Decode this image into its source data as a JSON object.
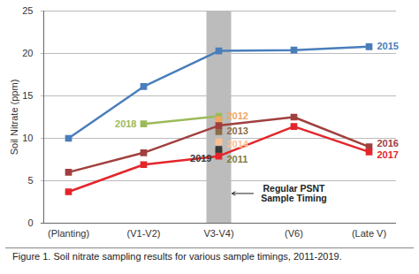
{
  "chart_data": {
    "type": "line",
    "categories": [
      "(Planting)",
      "(V1-V2)",
      "V3-V4)",
      "(V6)",
      "(Late V)"
    ],
    "series": [
      {
        "name": "2015",
        "color": "#4a7ebb",
        "values": [
          10.0,
          16.1,
          20.3,
          20.4,
          20.8
        ]
      },
      {
        "name": "2018",
        "color": "#9bbb59",
        "values": [
          null,
          11.7,
          12.6,
          null,
          null
        ]
      },
      {
        "name": "2012",
        "color": "#f0a860",
        "values": [
          null,
          null,
          12.2,
          null,
          null
        ]
      },
      {
        "name": "2013",
        "color": "#8c6d46",
        "values": [
          null,
          null,
          10.8,
          null,
          null
        ]
      },
      {
        "name": "2014",
        "color": "#fac090",
        "values": [
          null,
          null,
          9.6,
          null,
          null
        ]
      },
      {
        "name": "2011",
        "color": "#7f7a3a",
        "values": [
          null,
          null,
          8.4,
          null,
          null
        ]
      },
      {
        "name": "2016",
        "color": "#a0403e",
        "values": [
          6.0,
          8.3,
          11.5,
          12.5,
          9.0
        ]
      },
      {
        "name": "2017",
        "color": "#e3262b",
        "values": [
          3.7,
          6.9,
          7.9,
          11.4,
          8.4
        ]
      },
      {
        "name": "2019",
        "color": "#3a3a3a",
        "values": [
          null,
          null,
          8.7,
          null,
          null
        ]
      }
    ],
    "y_label": "Soil Nitrate (ppm)",
    "ylim": [
      0,
      25
    ],
    "yticks": [
      0,
      5,
      10,
      15,
      20,
      25
    ],
    "grid": true,
    "marker": "square",
    "annotations": [
      {
        "text": "Regular PSNT Sample Timing",
        "x": "V3-V4)"
      }
    ],
    "caption": "Figure 1. Soil nitrate sampling results for various sample timings, 2011-2019."
  }
}
